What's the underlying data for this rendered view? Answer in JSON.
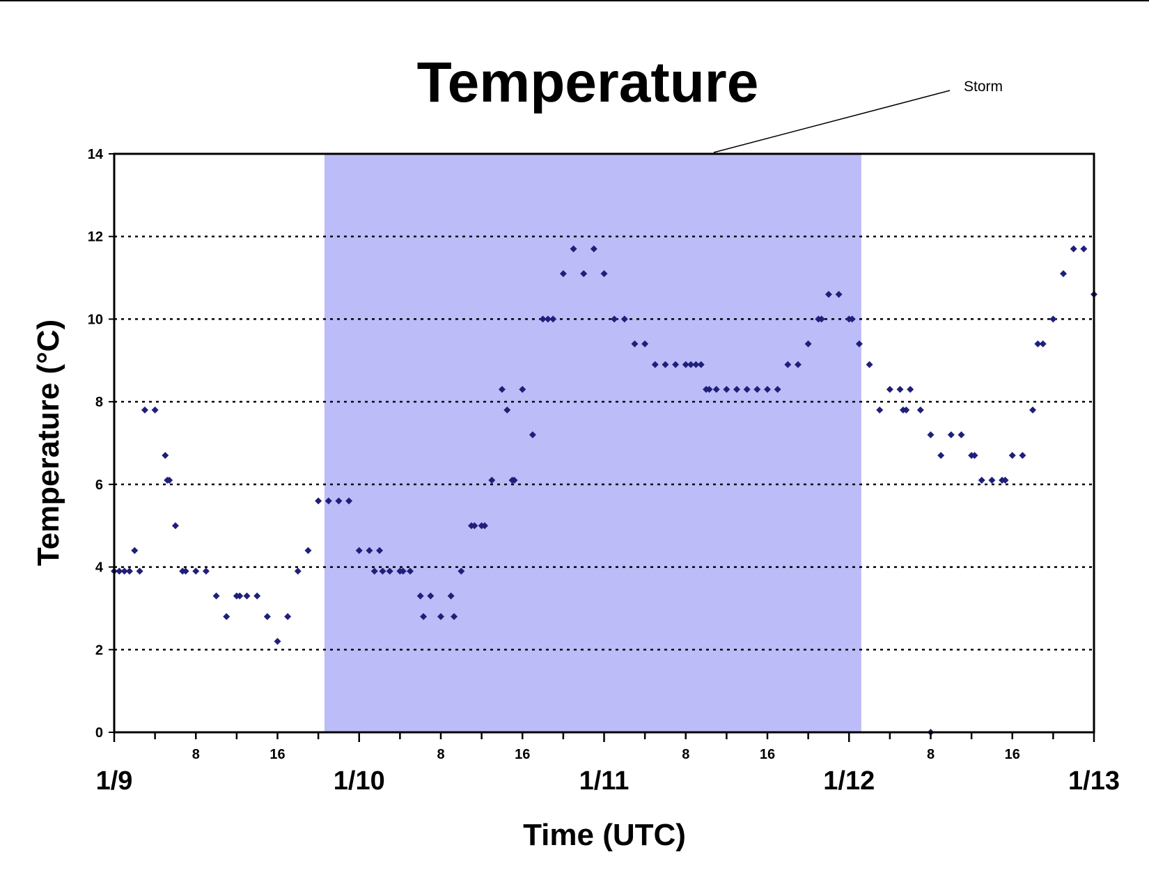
{
  "chart_data": {
    "type": "scatter",
    "title": "Temperature",
    "xlabel": "Time (UTC)",
    "ylabel": "Temperature (°C)",
    "ylim": [
      0,
      14
    ],
    "yticks": [
      0,
      2,
      4,
      6,
      8,
      10,
      12,
      14
    ],
    "xlim": [
      "1/9 00:00",
      "1/13 00:00"
    ],
    "date_labels": [
      {
        "text": "1/9",
        "day": 0
      },
      {
        "text": "1/10",
        "day": 1
      },
      {
        "text": "1/11",
        "day": 2
      },
      {
        "text": "1/12",
        "day": 3
      },
      {
        "text": "1/13",
        "day": 4
      }
    ],
    "hour_ticks": [
      0,
      4,
      8,
      12,
      16,
      20
    ],
    "hour_labels": [
      "8",
      "16"
    ],
    "grid": "horizontal dotted at y = 2, 4, 6, 8, 10, 12",
    "legend": "none",
    "colors": {
      "points": "#1f1f7a",
      "storm_band": "#bcbcf8",
      "grid": "#000000",
      "axes": "#000000"
    },
    "annotation": {
      "text": "Storm",
      "shaded_interval": {
        "start": "1/9 20:36",
        "end": "1/12 01:12"
      }
    },
    "series": [
      {
        "marker": "diamond",
        "points": [
          [
            "1/9 00:00",
            3.9
          ],
          [
            "1/9 00:30",
            3.9
          ],
          [
            "1/9 01:00",
            3.9
          ],
          [
            "1/9 01:30",
            3.9
          ],
          [
            "1/9 02:00",
            4.4
          ],
          [
            "1/9 02:30",
            3.9
          ],
          [
            "1/9 03:00",
            7.8
          ],
          [
            "1/9 04:00",
            7.8
          ],
          [
            "1/9 05:00",
            6.7
          ],
          [
            "1/9 05:12",
            6.1
          ],
          [
            "1/9 05:24",
            6.1
          ],
          [
            "1/9 06:00",
            5.0
          ],
          [
            "1/9 06:42",
            3.9
          ],
          [
            "1/9 07:00",
            3.9
          ],
          [
            "1/9 08:00",
            3.9
          ],
          [
            "1/9 09:00",
            3.9
          ],
          [
            "1/9 10:00",
            3.3
          ],
          [
            "1/9 11:00",
            2.8
          ],
          [
            "1/9 12:00",
            3.3
          ],
          [
            "1/9 12:18",
            3.3
          ],
          [
            "1/9 13:00",
            3.3
          ],
          [
            "1/9 14:00",
            3.3
          ],
          [
            "1/9 15:00",
            2.8
          ],
          [
            "1/9 16:00",
            2.2
          ],
          [
            "1/9 17:00",
            2.8
          ],
          [
            "1/9 18:00",
            3.9
          ],
          [
            "1/9 19:00",
            4.4
          ],
          [
            "1/9 20:00",
            5.6
          ],
          [
            "1/9 21:00",
            5.6
          ],
          [
            "1/9 22:00",
            5.6
          ],
          [
            "1/9 23:00",
            5.6
          ],
          [
            "1/10 00:00",
            4.4
          ],
          [
            "1/10 01:00",
            4.4
          ],
          [
            "1/10 01:30",
            3.9
          ],
          [
            "1/10 02:00",
            4.4
          ],
          [
            "1/10 02:18",
            3.9
          ],
          [
            "1/10 03:00",
            3.9
          ],
          [
            "1/10 04:00",
            3.9
          ],
          [
            "1/10 04:18",
            3.9
          ],
          [
            "1/10 05:00",
            3.9
          ],
          [
            "1/10 06:00",
            3.3
          ],
          [
            "1/10 06:18",
            2.8
          ],
          [
            "1/10 07:00",
            3.3
          ],
          [
            "1/10 08:00",
            2.8
          ],
          [
            "1/10 09:00",
            3.3
          ],
          [
            "1/10 09:18",
            2.8
          ],
          [
            "1/10 10:00",
            3.9
          ],
          [
            "1/10 11:00",
            5.0
          ],
          [
            "1/10 11:18",
            5.0
          ],
          [
            "1/10 12:00",
            5.0
          ],
          [
            "1/10 12:18",
            5.0
          ],
          [
            "1/10 13:00",
            6.1
          ],
          [
            "1/10 14:00",
            8.3
          ],
          [
            "1/10 14:30",
            7.8
          ],
          [
            "1/10 15:00",
            6.1
          ],
          [
            "1/10 15:12",
            6.1
          ],
          [
            "1/10 16:00",
            8.3
          ],
          [
            "1/10 17:00",
            7.2
          ],
          [
            "1/10 18:00",
            10.0
          ],
          [
            "1/10 18:30",
            10.0
          ],
          [
            "1/10 19:00",
            10.0
          ],
          [
            "1/10 20:00",
            11.1
          ],
          [
            "1/10 21:00",
            11.7
          ],
          [
            "1/10 22:00",
            11.1
          ],
          [
            "1/10 23:00",
            11.7
          ],
          [
            "1/11 00:00",
            11.1
          ],
          [
            "1/11 01:00",
            10.0
          ],
          [
            "1/11 02:00",
            10.0
          ],
          [
            "1/11 03:00",
            9.4
          ],
          [
            "1/11 04:00",
            9.4
          ],
          [
            "1/11 05:00",
            8.9
          ],
          [
            "1/11 06:00",
            8.9
          ],
          [
            "1/11 07:00",
            8.9
          ],
          [
            "1/11 08:00",
            8.9
          ],
          [
            "1/11 08:30",
            8.9
          ],
          [
            "1/11 09:00",
            8.9
          ],
          [
            "1/11 09:30",
            8.9
          ],
          [
            "1/11 10:00",
            8.3
          ],
          [
            "1/11 10:18",
            8.3
          ],
          [
            "1/11 11:00",
            8.3
          ],
          [
            "1/11 12:00",
            8.3
          ],
          [
            "1/11 13:00",
            8.3
          ],
          [
            "1/11 14:00",
            8.3
          ],
          [
            "1/11 15:00",
            8.3
          ],
          [
            "1/11 16:00",
            8.3
          ],
          [
            "1/11 17:00",
            8.3
          ],
          [
            "1/11 18:00",
            8.9
          ],
          [
            "1/11 19:00",
            8.9
          ],
          [
            "1/11 20:00",
            9.4
          ],
          [
            "1/11 21:00",
            10.0
          ],
          [
            "1/11 21:18",
            10.0
          ],
          [
            "1/11 22:00",
            10.6
          ],
          [
            "1/11 23:00",
            10.6
          ],
          [
            "1/12 00:00",
            10.0
          ],
          [
            "1/12 00:18",
            10.0
          ],
          [
            "1/12 01:00",
            9.4
          ],
          [
            "1/12 02:00",
            8.9
          ],
          [
            "1/12 03:00",
            7.8
          ],
          [
            "1/12 04:00",
            8.3
          ],
          [
            "1/12 05:00",
            8.3
          ],
          [
            "1/12 05:18",
            7.8
          ],
          [
            "1/12 05:36",
            7.8
          ],
          [
            "1/12 06:00",
            8.3
          ],
          [
            "1/12 07:00",
            7.8
          ],
          [
            "1/12 08:00",
            7.2
          ],
          [
            "1/12 08:00",
            0.0
          ],
          [
            "1/12 09:00",
            6.7
          ],
          [
            "1/12 10:00",
            7.2
          ],
          [
            "1/12 11:00",
            7.2
          ],
          [
            "1/12 12:00",
            6.7
          ],
          [
            "1/12 12:18",
            6.7
          ],
          [
            "1/12 13:00",
            6.1
          ],
          [
            "1/12 14:00",
            6.1
          ],
          [
            "1/12 15:00",
            6.1
          ],
          [
            "1/12 15:18",
            6.1
          ],
          [
            "1/12 16:00",
            6.7
          ],
          [
            "1/12 17:00",
            6.7
          ],
          [
            "1/12 18:00",
            7.8
          ],
          [
            "1/12 18:30",
            9.4
          ],
          [
            "1/12 19:00",
            9.4
          ],
          [
            "1/12 20:00",
            10.0
          ],
          [
            "1/12 21:00",
            11.1
          ],
          [
            "1/12 22:00",
            11.7
          ],
          [
            "1/12 23:00",
            11.7
          ],
          [
            "1/13 00:00",
            10.6
          ]
        ]
      }
    ]
  }
}
